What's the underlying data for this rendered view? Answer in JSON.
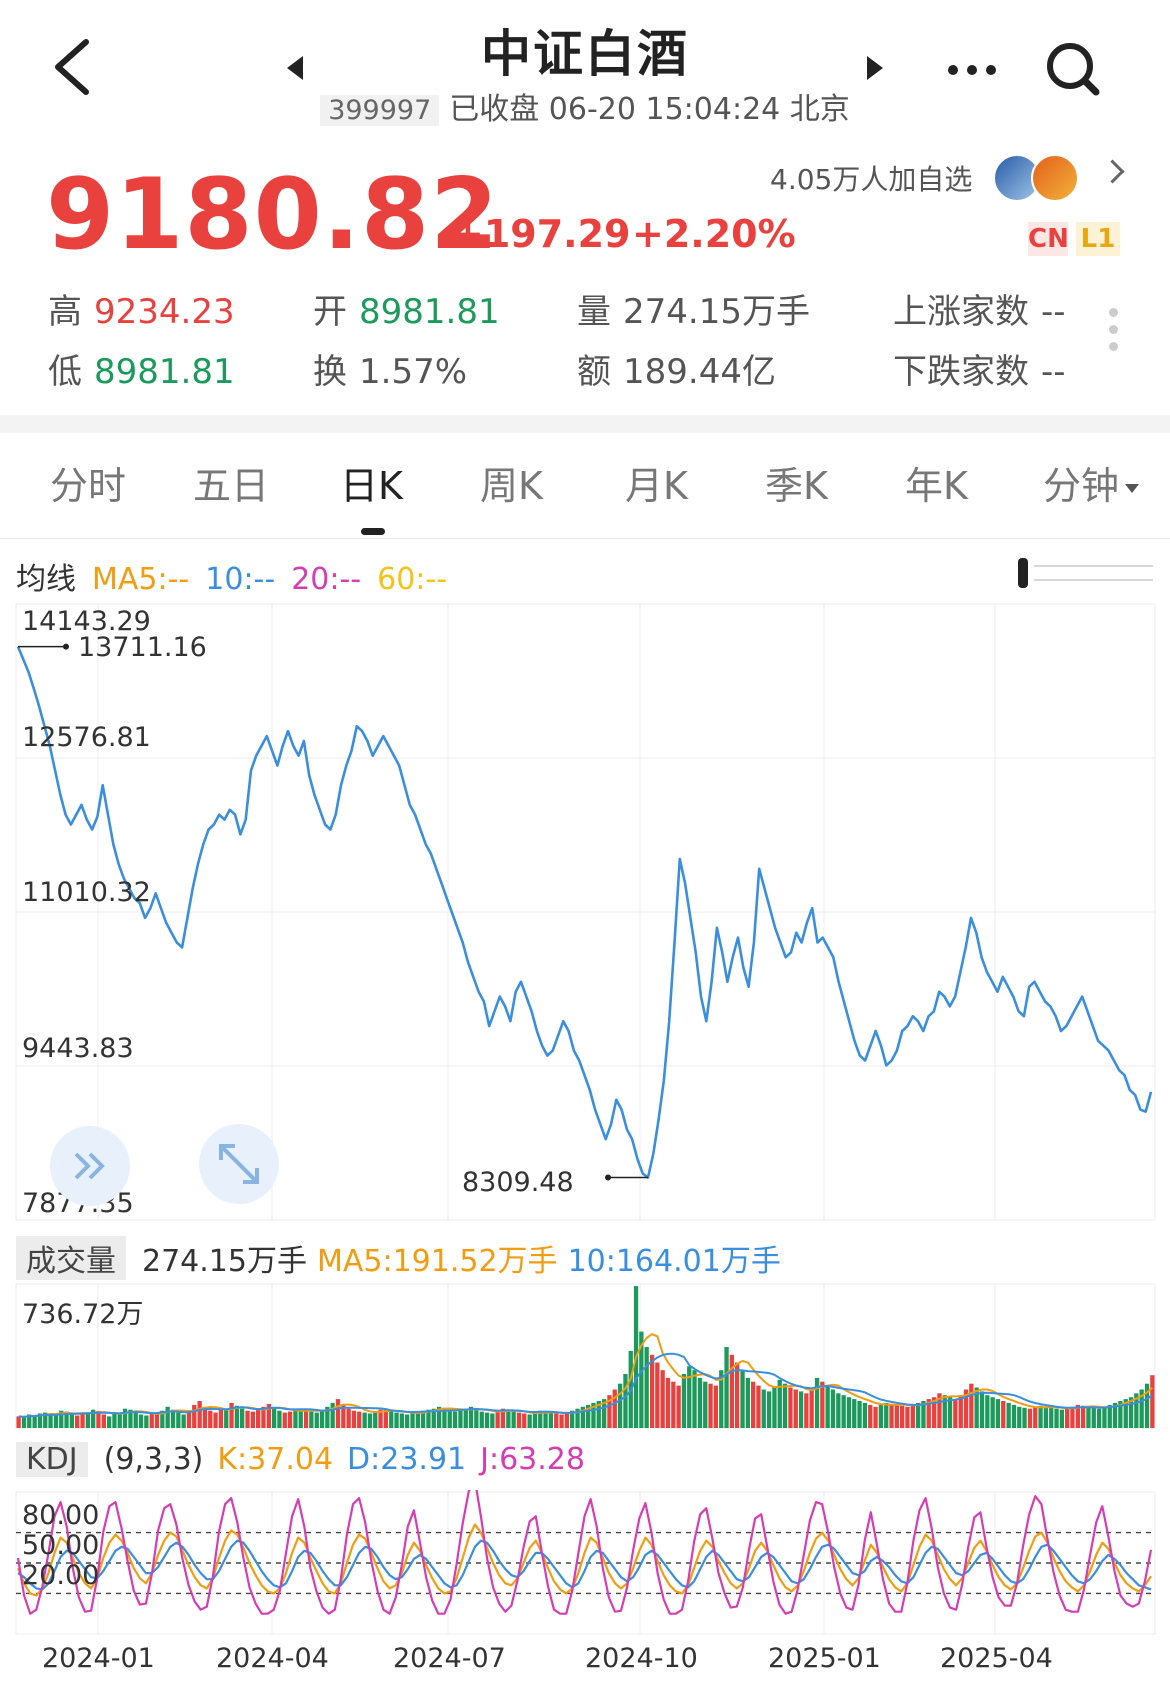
{
  "header": {
    "title": "中证白酒",
    "code": "399997",
    "status": "已收盘 06-20 15:04:24 北京"
  },
  "quote": {
    "price": "9180.82",
    "change": "+197.29",
    "change_pct": "+2.20%",
    "followers": "4.05万人加自选",
    "badge_cn": "CN",
    "badge_l1": "L1"
  },
  "stats": {
    "high_label": "高",
    "high": "9234.23",
    "open_label": "开",
    "open": "8981.81",
    "vol_label": "量",
    "vol": "274.15万手",
    "up_label": "上涨家数",
    "up": "--",
    "low_label": "低",
    "low": "8981.81",
    "turn_label": "换",
    "turn": "1.57%",
    "amt_label": "额",
    "amt": "189.44亿",
    "down_label": "下跌家数",
    "down": "--"
  },
  "tabs": [
    "分时",
    "五日",
    "日K",
    "周K",
    "月K",
    "季K",
    "年K",
    "分钟"
  ],
  "active_tab": 2,
  "ma": {
    "label": "均线",
    "ma5": "MA5:--",
    "ma10": "10:--",
    "ma20": "20:--",
    "ma60": "60:--"
  },
  "volume_info": {
    "label": "成交量",
    "value": "274.15万手",
    "ma5": "MA5:191.52万手",
    "ma10": "10:164.01万手",
    "ymax": "736.72万"
  },
  "kdj_info": {
    "label": "KDJ",
    "params": "(9,3,3)",
    "k": "K:37.04",
    "d": "D:23.91",
    "j": "J:63.28"
  },
  "colors": {
    "up": "#e8413e",
    "down": "#1b9a5b",
    "ma5": "#f39c12",
    "ma10": "#3a8ee0",
    "ma20": "#d63db3",
    "ma60": "#f5c217",
    "line": "#3a8ee0"
  },
  "chart_data": [
    {
      "type": "line",
      "title": "日K",
      "y_ticks": [
        "14143.29",
        "12576.81",
        "11010.32",
        "9443.83",
        "7877.35"
      ],
      "ylim": [
        7877.35,
        14143.29
      ],
      "high_marker": "13711.16",
      "low_marker": "8309.48",
      "x_ticks": [
        "2024-01",
        "2024-04",
        "2024-07",
        "2024-10",
        "2025-01",
        "2025-04"
      ],
      "series": [
        {
          "values": [
            13710,
            13580,
            13450,
            13280,
            13100,
            12900,
            12700,
            12450,
            12200,
            12000,
            11900,
            12000,
            12100,
            11950,
            11850,
            11980,
            12300,
            12000,
            11700,
            11500,
            11350,
            11250,
            11150,
            11100,
            10950,
            11050,
            11200,
            11050,
            10900,
            10800,
            10700,
            10650,
            10950,
            11250,
            11500,
            11700,
            11850,
            11900,
            12000,
            11950,
            12050,
            12000,
            11800,
            11950,
            12450,
            12600,
            12700,
            12800,
            12650,
            12500,
            12700,
            12850,
            12700,
            12600,
            12750,
            12400,
            12200,
            12050,
            11900,
            11850,
            12000,
            12300,
            12500,
            12650,
            12900,
            12850,
            12750,
            12600,
            12700,
            12800,
            12700,
            12600,
            12500,
            12300,
            12100,
            12000,
            11850,
            11700,
            11600,
            11450,
            11300,
            11150,
            11000,
            10850,
            10700,
            10500,
            10350,
            10200,
            10100,
            9850,
            10000,
            10150,
            10050,
            9900,
            10200,
            10300,
            10150,
            10000,
            9800,
            9650,
            9550,
            9600,
            9750,
            9900,
            9800,
            9600,
            9500,
            9350,
            9200,
            9000,
            8850,
            8700,
            8850,
            9100,
            9000,
            8800,
            8700,
            8500,
            8350,
            8310,
            8550,
            8900,
            9300,
            9900,
            10700,
            11550,
            11300,
            10950,
            10600,
            10150,
            9900,
            10300,
            10850,
            10600,
            10300,
            10550,
            10750,
            10450,
            10250,
            10700,
            11450,
            11250,
            11050,
            10850,
            10700,
            10550,
            10600,
            10800,
            10700,
            10900,
            11050,
            10700,
            10750,
            10650,
            10550,
            10300,
            10100,
            9900,
            9700,
            9550,
            9500,
            9650,
            9800,
            9650,
            9450,
            9500,
            9600,
            9800,
            9850,
            9950,
            9900,
            9800,
            9950,
            10000,
            10200,
            10150,
            10050,
            10150,
            10400,
            10650,
            10950,
            10800,
            10550,
            10400,
            10300,
            10200,
            10350,
            10250,
            10150,
            10000,
            9950,
            10250,
            10300,
            10200,
            10100,
            10050,
            9950,
            9800,
            9850,
            9950,
            10050,
            10150,
            10000,
            9850,
            9700,
            9650,
            9600,
            9500,
            9400,
            9350,
            9200,
            9150,
            9000,
            8980,
            9180
          ]
        }
      ]
    },
    {
      "type": "bar",
      "title": "成交量",
      "ylim": [
        0,
        736.72
      ],
      "ylabel": "万手",
      "series": [
        {
          "values": [
            60,
            55,
            70,
            65,
            75,
            80,
            72,
            68,
            90,
            85,
            70,
            65,
            78,
            82,
            95,
            88,
            70,
            60,
            75,
            80,
            100,
            95,
            85,
            70,
            65,
            72,
            78,
            90,
            110,
            95,
            80,
            70,
            85,
            120,
            140,
            110,
            90,
            80,
            95,
            100,
            130,
            115,
            100,
            90,
            85,
            95,
            110,
            125,
            105,
            90,
            80,
            85,
            100,
            95,
            90,
            85,
            80,
            95,
            110,
            130,
            150,
            120,
            100,
            90,
            85,
            80,
            75,
            85,
            95,
            100,
            90,
            80,
            75,
            70,
            80,
            85,
            90,
            95,
            100,
            110,
            105,
            95,
            85,
            90,
            100,
            110,
            95,
            85,
            80,
            75,
            90,
            100,
            95,
            85,
            80,
            75,
            70,
            80,
            90,
            85,
            80,
            75,
            70,
            80,
            90,
            100,
            110,
            120,
            130,
            140,
            150,
            170,
            200,
            230,
            280,
            400,
            736,
            500,
            420,
            380,
            340,
            300,
            260,
            240,
            220,
            280,
            320,
            300,
            260,
            240,
            230,
            220,
            300,
            420,
            380,
            340,
            300,
            260,
            240,
            220,
            200,
            190,
            210,
            250,
            230,
            210,
            200,
            190,
            180,
            200,
            260,
            240,
            220,
            200,
            180,
            170,
            160,
            150,
            140,
            130,
            120,
            110,
            120,
            130,
            125,
            120,
            115,
            110,
            120,
            130,
            140,
            150,
            160,
            180,
            170,
            160,
            150,
            170,
            200,
            230,
            210,
            190,
            170,
            160,
            150,
            140,
            130,
            120,
            110,
            105,
            100,
            110,
            115,
            110,
            105,
            100,
            95,
            100,
            110,
            120,
            115,
            110,
            105,
            100,
            110,
            120,
            130,
            140,
            150,
            160,
            180,
            200,
            230,
            274
          ]
        }
      ]
    },
    {
      "type": "line",
      "title": "KDJ",
      "y_ticks": [
        "80.00",
        "50.00",
        "20.00"
      ],
      "ylim": [
        -20,
        120
      ],
      "series": [
        {
          "name": "K",
          "values": [
            45,
            30,
            20,
            18,
            25,
            40,
            60,
            75,
            70,
            55,
            40,
            30,
            25,
            35,
            55,
            70,
            78,
            72,
            60,
            45,
            35,
            30,
            40,
            58,
            72,
            80,
            76,
            62,
            48,
            36,
            28,
            25,
            35,
            55,
            72,
            82,
            78,
            65,
            50,
            38,
            28,
            22,
            20,
            25,
            40,
            60,
            75,
            70,
            55,
            42,
            30,
            22,
            20,
            30,
            50,
            68,
            78,
            74,
            60,
            45,
            32,
            25,
            28,
            40,
            58,
            70,
            62,
            48,
            35,
            25,
            20,
            22,
            35,
            55,
            75,
            88,
            80,
            65,
            50,
            38,
            30,
            28,
            35,
            50,
            65,
            72,
            60,
            45,
            32,
            24,
            20,
            25,
            40,
            60,
            75,
            70,
            55,
            40,
            30,
            25,
            30,
            45,
            62,
            75,
            68,
            52,
            38,
            28,
            22,
            20,
            28,
            45,
            62,
            72,
            66,
            52,
            40,
            30,
            25,
            30,
            45,
            62,
            70,
            62,
            48,
            35,
            26,
            22,
            28,
            42,
            60,
            74,
            80,
            72,
            58,
            44,
            34,
            28,
            35,
            52,
            68,
            60,
            46,
            34,
            26,
            22,
            30,
            48,
            66,
            78,
            72,
            58,
            44,
            34,
            28,
            35,
            50,
            65,
            72,
            62,
            48,
            36,
            28,
            24,
            30,
            45,
            62,
            76,
            80,
            70,
            55,
            42,
            32,
            26,
            22,
            28,
            42,
            58,
            70,
            64,
            50,
            38,
            30,
            25,
            22,
            28,
            37
          ]
        },
        {
          "name": "D",
          "values": [
            40,
            36,
            30,
            25,
            24,
            30,
            42,
            56,
            62,
            60,
            52,
            44,
            36,
            35,
            42,
            52,
            62,
            66,
            64,
            56,
            48,
            40,
            40,
            46,
            56,
            66,
            70,
            66,
            58,
            48,
            40,
            34,
            34,
            42,
            54,
            66,
            72,
            70,
            62,
            52,
            42,
            34,
            28,
            26,
            30,
            42,
            56,
            62,
            60,
            52,
            42,
            34,
            28,
            28,
            36,
            48,
            60,
            66,
            64,
            56,
            46,
            38,
            34,
            36,
            44,
            54,
            58,
            54,
            46,
            38,
            30,
            26,
            28,
            38,
            52,
            66,
            72,
            70,
            62,
            52,
            44,
            38,
            36,
            42,
            52,
            60,
            60,
            54,
            46,
            38,
            30,
            26,
            30,
            42,
            56,
            62,
            60,
            52,
            44,
            36,
            32,
            36,
            46,
            58,
            62,
            58,
            50,
            42,
            34,
            28,
            26,
            32,
            44,
            56,
            62,
            58,
            50,
            42,
            34,
            32,
            36,
            46,
            56,
            60,
            56,
            48,
            40,
            32,
            30,
            34,
            44,
            56,
            66,
            68,
            64,
            56,
            48,
            40,
            38,
            42,
            52,
            56,
            52,
            46,
            38,
            32,
            30,
            36,
            48,
            60,
            66,
            64,
            56,
            48,
            40,
            38,
            42,
            50,
            58,
            60,
            54,
            46,
            38,
            32,
            30,
            34,
            44,
            56,
            66,
            68,
            62,
            54,
            46,
            38,
            32,
            30,
            34,
            42,
            52,
            58,
            54,
            48,
            40,
            34,
            28,
            26,
            24
          ]
        },
        {
          "name": "J",
          "values": [
            55,
            18,
            0,
            4,
            27,
            60,
            96,
            110,
            86,
            45,
            16,
            2,
            3,
            35,
            81,
            106,
            110,
            84,
            52,
            23,
            9,
            10,
            40,
            82,
            104,
            108,
            88,
            54,
            28,
            12,
            4,
            7,
            37,
            81,
            108,
            114,
            90,
            55,
            26,
            10,
            0,
            0,
            4,
            23,
            60,
            96,
            113,
            86,
            45,
            22,
            6,
            0,
            4,
            34,
            78,
            108,
            114,
            90,
            52,
            23,
            4,
            0,
            16,
            48,
            86,
            102,
            70,
            36,
            13,
            0,
            0,
            14,
            49,
            89,
            121,
            132,
            96,
            55,
            26,
            10,
            2,
            8,
            33,
            66,
            91,
            96,
            60,
            27,
            4,
            0,
            0,
            23,
            60,
            96,
            113,
            86,
            45,
            16,
            2,
            3,
            26,
            63,
            94,
            109,
            80,
            40,
            14,
            0,
            0,
            4,
            32,
            71,
            98,
            104,
            74,
            40,
            20,
            6,
            7,
            26,
            63,
            94,
            98,
            66,
            32,
            9,
            0,
            2,
            24,
            58,
            92,
            110,
            108,
            80,
            46,
            20,
            6,
            4,
            29,
            72,
            100,
            68,
            34,
            10,
            2,
            2,
            30,
            72,
            102,
            114,
            84,
            46,
            20,
            6,
            4,
            29,
            66,
            95,
            100,
            66,
            36,
            16,
            8,
            8,
            30,
            67,
            98,
            116,
            108,
            74,
            41,
            18,
            4,
            2,
            2,
            24,
            58,
            90,
            106,
            76,
            42,
            18,
            10,
            7,
            10,
            32,
            63
          ]
        }
      ]
    }
  ]
}
